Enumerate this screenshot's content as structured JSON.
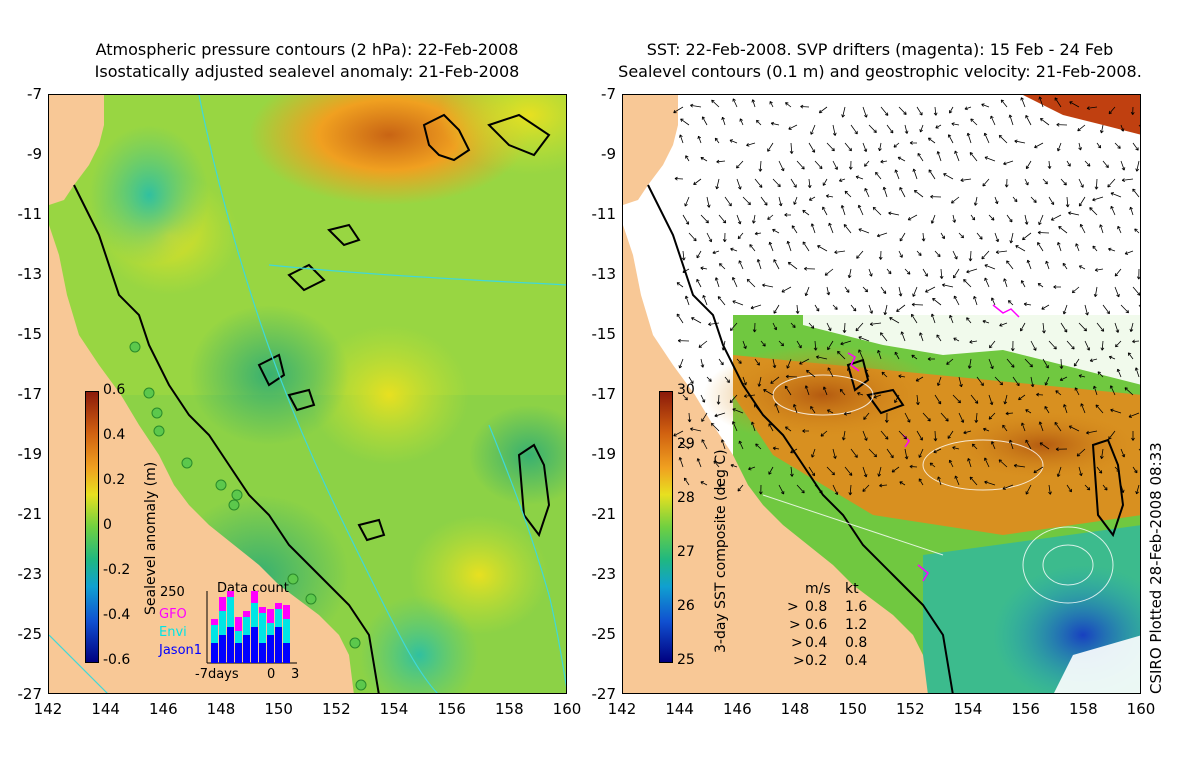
{
  "left_panel": {
    "title_line1": "Atmospheric pressure contours (2 hPa): 22-Feb-2008",
    "title_line2": "Isostatically adjusted sealevel anomaly: 21-Feb-2008",
    "colorbar": {
      "label": "Sealevel anomaly (m)",
      "ticks": [
        "0.6",
        "0.4",
        "0.2",
        "0",
        "-0.2",
        "-0.4",
        "-0.6"
      ],
      "range": [
        -0.6,
        0.6
      ]
    },
    "data_count": {
      "title": "Data count",
      "y_max_label": "250",
      "x_labels": [
        "-7days",
        "0",
        "3"
      ],
      "legend": [
        "GFO",
        "Envi",
        "Jason1"
      ],
      "legend_colors": [
        "#ff00ff",
        "#00e5e5",
        "#0000ff"
      ]
    }
  },
  "right_panel": {
    "title_line1": "SST: 22-Feb-2008. SVP drifters (magenta): 15 Feb - 24 Feb",
    "title_line2": "Sealevel contours (0.1 m) and geostrophic velocity: 21-Feb-2008.",
    "colorbar": {
      "label": "3-day SST composite (deg C)",
      "ticks": [
        "30",
        "29",
        "28",
        "27",
        "26",
        "25"
      ],
      "range": [
        25,
        30
      ]
    },
    "velocity_legend": {
      "header_ms": "m/s",
      "header_kt": "kt",
      "rows": [
        {
          "ms": "0.8",
          "kt": "1.6"
        },
        {
          "ms": "0.6",
          "kt": "1.2"
        },
        {
          "ms": "0.4",
          "kt": "0.8"
        },
        {
          "ms": "0.2",
          "kt": "0.4"
        }
      ]
    },
    "credit": "CSIRO Plotted 28-Feb-2008 08:33"
  },
  "axes": {
    "lat_ticks": [
      "-7",
      "-9",
      "-11",
      "-13",
      "-15",
      "-17",
      "-19",
      "-21",
      "-23",
      "-25",
      "-27"
    ],
    "lon_ticks": [
      "142",
      "144",
      "146",
      "148",
      "150",
      "152",
      "154",
      "156",
      "158",
      "160"
    ],
    "lat_range": [
      -27,
      -7
    ],
    "lon_range": [
      142,
      160
    ]
  },
  "colors": {
    "land": "#f8c896",
    "drifter": "#ff00ff"
  }
}
